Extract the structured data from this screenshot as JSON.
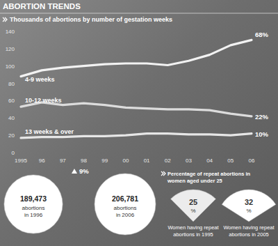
{
  "header": {
    "title": "ABORTION TRENDS"
  },
  "chart_data": [
    {
      "type": "line",
      "title": "Thousands of abortions by number of gestation weeks",
      "categories": [
        "1995",
        "96",
        "97",
        "98",
        "99",
        "00",
        "01",
        "02",
        "03",
        "04",
        "05",
        "06"
      ],
      "ylim": [
        0,
        140
      ],
      "yticks": [
        0,
        20,
        40,
        60,
        80,
        100,
        120,
        140
      ],
      "grid": false,
      "series": [
        {
          "name": "4-9 weeks",
          "color": "#f2f2f2",
          "values": [
            88,
            95,
            98,
            100,
            102,
            103,
            103,
            101,
            106,
            113,
            124,
            130
          ],
          "annotation": "68%"
        },
        {
          "name": "10-12 weeks",
          "color": "#dcdcdc",
          "values": [
            53,
            58,
            55,
            57,
            55,
            52,
            51,
            50,
            50,
            49,
            45,
            42
          ],
          "annotation": "22%"
        },
        {
          "name": "13 weeks & over",
          "color": "#e6e6e6",
          "values": [
            17,
            18,
            18,
            19,
            19,
            20,
            22,
            22,
            21,
            21,
            20,
            22
          ],
          "annotation": "10%"
        }
      ]
    },
    {
      "type": "bubble",
      "annotation": "9%",
      "categories": [
        "abortions in 1996",
        "abortions in 2006"
      ],
      "values": [
        189473,
        206781
      ],
      "value_labels": [
        "189,473",
        "206,781"
      ],
      "color": "#ffffff",
      "data_labels": true
    },
    {
      "type": "pie",
      "title": "Percentage of repeat abortions in women aged under 25",
      "categories": [
        "Women having repeat abortions in 1995",
        "Women having repeat abortions in 2005"
      ],
      "values": [
        25,
        32
      ],
      "unit_label": "%",
      "colors": [
        "#ececec",
        "#ffffff"
      ],
      "data_labels": true
    }
  ]
}
